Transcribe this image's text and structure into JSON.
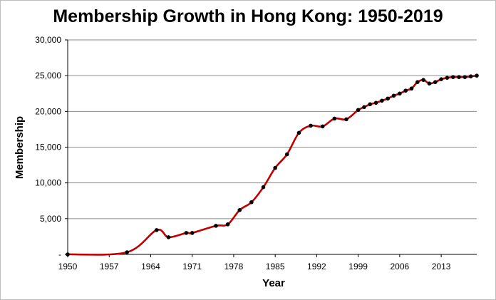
{
  "chart_data": {
    "type": "line",
    "title": "Membership Growth in Hong Kong: 1950-2019",
    "xlabel": "Year",
    "ylabel": "Membership",
    "xlim": [
      1950,
      2019
    ],
    "ylim": [
      0,
      30000
    ],
    "x_ticks": [
      "1950",
      "1957",
      "1964",
      "1971",
      "1978",
      "1985",
      "1992",
      "1999",
      "2006",
      "2013"
    ],
    "x_tick_values": [
      1950,
      1957,
      1964,
      1971,
      1978,
      1985,
      1992,
      1999,
      2006,
      2013
    ],
    "y_ticks": [
      "-",
      "5,000",
      "10,000",
      "15,000",
      "20,000",
      "25,000",
      "30,000"
    ],
    "y_tick_values": [
      0,
      5000,
      10000,
      15000,
      20000,
      25000,
      30000
    ],
    "grid": "horizontal",
    "legend": "none",
    "series": [
      {
        "color": "#c00000",
        "marker_color": "#000000",
        "points": [
          [
            1950,
            0
          ],
          [
            1960,
            300
          ],
          [
            1965,
            3400
          ],
          [
            1967,
            2400
          ],
          [
            1970,
            3000
          ],
          [
            1971,
            3000
          ],
          [
            1975,
            4000
          ],
          [
            1977,
            4200
          ],
          [
            1979,
            6200
          ],
          [
            1981,
            7300
          ],
          [
            1983,
            9400
          ],
          [
            1985,
            12100
          ],
          [
            1987,
            14000
          ],
          [
            1989,
            17000
          ],
          [
            1991,
            18000
          ],
          [
            1993,
            17900
          ],
          [
            1995,
            19000
          ],
          [
            1997,
            18900
          ],
          [
            1999,
            20200
          ],
          [
            2000,
            20600
          ],
          [
            2001,
            21000
          ],
          [
            2002,
            21200
          ],
          [
            2003,
            21500
          ],
          [
            2004,
            21800
          ],
          [
            2005,
            22200
          ],
          [
            2006,
            22500
          ],
          [
            2007,
            22900
          ],
          [
            2008,
            23200
          ],
          [
            2009,
            24100
          ],
          [
            2010,
            24400
          ],
          [
            2011,
            23900
          ],
          [
            2012,
            24100
          ],
          [
            2013,
            24500
          ],
          [
            2014,
            24700
          ],
          [
            2015,
            24800
          ],
          [
            2016,
            24800
          ],
          [
            2017,
            24800
          ],
          [
            2018,
            24900
          ],
          [
            2019,
            25000
          ]
        ]
      }
    ]
  }
}
